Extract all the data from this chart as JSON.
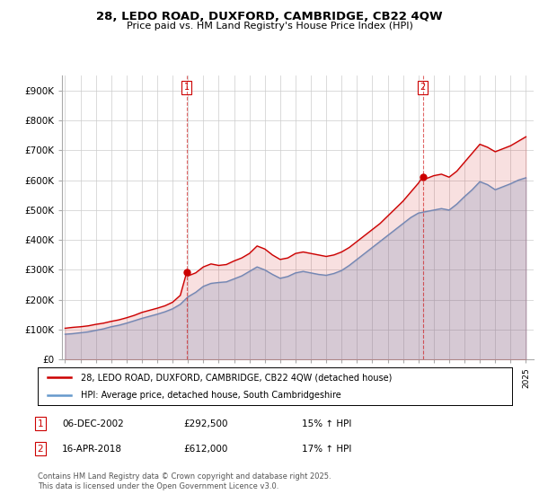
{
  "title": "28, LEDO ROAD, DUXFORD, CAMBRIDGE, CB22 4QW",
  "subtitle": "Price paid vs. HM Land Registry's House Price Index (HPI)",
  "legend_line1": "28, LEDO ROAD, DUXFORD, CAMBRIDGE, CB22 4QW (detached house)",
  "legend_line2": "HPI: Average price, detached house, South Cambridgeshire",
  "footnote": "Contains HM Land Registry data © Crown copyright and database right 2025.\nThis data is licensed under the Open Government Licence v3.0.",
  "marker1_date": "06-DEC-2002",
  "marker1_price": "£292,500",
  "marker1_hpi": "15% ↑ HPI",
  "marker2_date": "16-APR-2018",
  "marker2_price": "£612,000",
  "marker2_hpi": "17% ↑ HPI",
  "red_color": "#cc0000",
  "blue_color": "#6699cc",
  "background_color": "#ffffff",
  "grid_color": "#cccccc",
  "ylim": [
    0,
    950000
  ],
  "yticks": [
    0,
    100000,
    200000,
    300000,
    400000,
    500000,
    600000,
    700000,
    800000,
    900000
  ],
  "ytick_labels": [
    "£0",
    "£100K",
    "£200K",
    "£300K",
    "£400K",
    "£500K",
    "£600K",
    "£700K",
    "£800K",
    "£900K"
  ],
  "marker1_x": 2002.92,
  "marker2_x": 2018.29,
  "red_data": [
    [
      1995.0,
      105000
    ],
    [
      1995.5,
      108000
    ],
    [
      1996.0,
      110000
    ],
    [
      1996.5,
      113000
    ],
    [
      1997.0,
      118000
    ],
    [
      1997.5,
      122000
    ],
    [
      1998.0,
      128000
    ],
    [
      1998.5,
      133000
    ],
    [
      1999.0,
      140000
    ],
    [
      1999.5,
      148000
    ],
    [
      2000.0,
      158000
    ],
    [
      2000.5,
      165000
    ],
    [
      2001.0,
      172000
    ],
    [
      2001.5,
      180000
    ],
    [
      2002.0,
      192000
    ],
    [
      2002.5,
      215000
    ],
    [
      2002.92,
      292500
    ],
    [
      2003.0,
      280000
    ],
    [
      2003.5,
      290000
    ],
    [
      2004.0,
      310000
    ],
    [
      2004.5,
      320000
    ],
    [
      2005.0,
      315000
    ],
    [
      2005.5,
      318000
    ],
    [
      2006.0,
      330000
    ],
    [
      2006.5,
      340000
    ],
    [
      2007.0,
      355000
    ],
    [
      2007.5,
      380000
    ],
    [
      2008.0,
      370000
    ],
    [
      2008.5,
      350000
    ],
    [
      2009.0,
      335000
    ],
    [
      2009.5,
      340000
    ],
    [
      2010.0,
      355000
    ],
    [
      2010.5,
      360000
    ],
    [
      2011.0,
      355000
    ],
    [
      2011.5,
      350000
    ],
    [
      2012.0,
      345000
    ],
    [
      2012.5,
      350000
    ],
    [
      2013.0,
      360000
    ],
    [
      2013.5,
      375000
    ],
    [
      2014.0,
      395000
    ],
    [
      2014.5,
      415000
    ],
    [
      2015.0,
      435000
    ],
    [
      2015.5,
      455000
    ],
    [
      2016.0,
      480000
    ],
    [
      2016.5,
      505000
    ],
    [
      2017.0,
      530000
    ],
    [
      2017.5,
      560000
    ],
    [
      2018.0,
      590000
    ],
    [
      2018.29,
      612000
    ],
    [
      2018.5,
      605000
    ],
    [
      2019.0,
      615000
    ],
    [
      2019.5,
      620000
    ],
    [
      2020.0,
      610000
    ],
    [
      2020.5,
      630000
    ],
    [
      2021.0,
      660000
    ],
    [
      2021.5,
      690000
    ],
    [
      2022.0,
      720000
    ],
    [
      2022.5,
      710000
    ],
    [
      2023.0,
      695000
    ],
    [
      2023.5,
      705000
    ],
    [
      2024.0,
      715000
    ],
    [
      2024.5,
      730000
    ],
    [
      2025.0,
      745000
    ]
  ],
  "blue_data": [
    [
      1995.0,
      85000
    ],
    [
      1995.5,
      87000
    ],
    [
      1996.0,
      90000
    ],
    [
      1996.5,
      93000
    ],
    [
      1997.0,
      98000
    ],
    [
      1997.5,
      103000
    ],
    [
      1998.0,
      110000
    ],
    [
      1998.5,
      115000
    ],
    [
      1999.0,
      122000
    ],
    [
      1999.5,
      130000
    ],
    [
      2000.0,
      138000
    ],
    [
      2000.5,
      145000
    ],
    [
      2001.0,
      152000
    ],
    [
      2001.5,
      160000
    ],
    [
      2002.0,
      170000
    ],
    [
      2002.5,
      185000
    ],
    [
      2003.0,
      210000
    ],
    [
      2003.5,
      225000
    ],
    [
      2004.0,
      245000
    ],
    [
      2004.5,
      255000
    ],
    [
      2005.0,
      258000
    ],
    [
      2005.5,
      260000
    ],
    [
      2006.0,
      270000
    ],
    [
      2006.5,
      280000
    ],
    [
      2007.0,
      295000
    ],
    [
      2007.5,
      310000
    ],
    [
      2008.0,
      300000
    ],
    [
      2008.5,
      285000
    ],
    [
      2009.0,
      272000
    ],
    [
      2009.5,
      278000
    ],
    [
      2010.0,
      290000
    ],
    [
      2010.5,
      295000
    ],
    [
      2011.0,
      290000
    ],
    [
      2011.5,
      285000
    ],
    [
      2012.0,
      282000
    ],
    [
      2012.5,
      288000
    ],
    [
      2013.0,
      298000
    ],
    [
      2013.5,
      315000
    ],
    [
      2014.0,
      335000
    ],
    [
      2014.5,
      355000
    ],
    [
      2015.0,
      375000
    ],
    [
      2015.5,
      395000
    ],
    [
      2016.0,
      415000
    ],
    [
      2016.5,
      435000
    ],
    [
      2017.0,
      455000
    ],
    [
      2017.5,
      475000
    ],
    [
      2018.0,
      490000
    ],
    [
      2018.5,
      495000
    ],
    [
      2019.0,
      500000
    ],
    [
      2019.5,
      505000
    ],
    [
      2020.0,
      500000
    ],
    [
      2020.5,
      520000
    ],
    [
      2021.0,
      545000
    ],
    [
      2021.5,
      568000
    ],
    [
      2022.0,
      595000
    ],
    [
      2022.5,
      585000
    ],
    [
      2023.0,
      568000
    ],
    [
      2023.5,
      578000
    ],
    [
      2024.0,
      588000
    ],
    [
      2024.5,
      600000
    ],
    [
      2025.0,
      608000
    ]
  ]
}
